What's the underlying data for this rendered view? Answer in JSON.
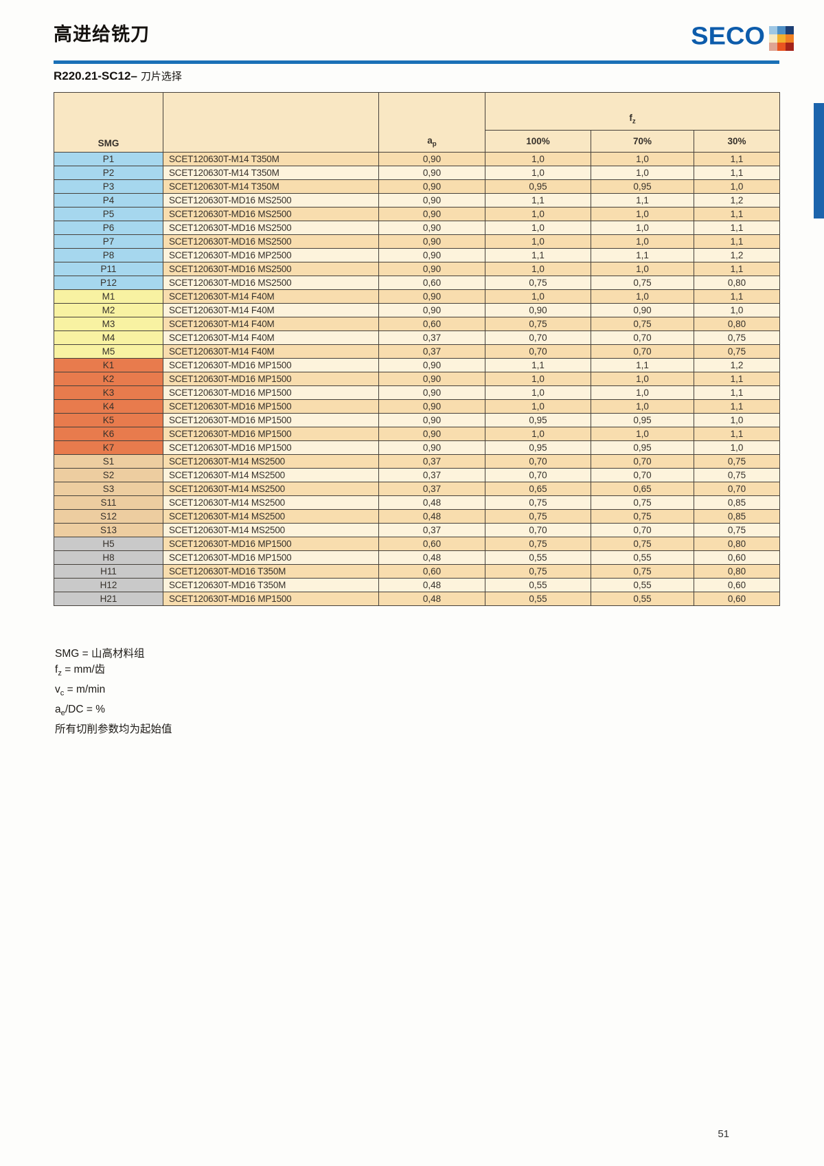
{
  "page": {
    "title": "高进给铣刀",
    "subtitle_code": "R220.21-SC12–",
    "subtitle_text": "刀片选择",
    "page_number": "51"
  },
  "logo": {
    "text": "SECO",
    "cube_colors": [
      [
        "#9ec7e4",
        "#4e8fc4",
        "#1c3e74"
      ],
      [
        "#f6e9c4",
        "#f2b02c",
        "#f08123"
      ],
      [
        "#dfa493",
        "#ea5420",
        "#a4231a"
      ]
    ]
  },
  "colors": {
    "accent_blue": "#1a70b6",
    "logo_blue": "#0d5cab",
    "side_tab": "#1c64ac",
    "header_bg": "#f9e7c3",
    "row_odd": "#f8ddae",
    "row_even": "#fdf3dc",
    "border": "#45403a",
    "group_P": "#a6d7ee",
    "group_M": "#f8f2a2",
    "group_K": "#e87b4d",
    "group_S": "#edcda0",
    "group_H": "#c9c9c9"
  },
  "table": {
    "headers": {
      "smg": "SMG",
      "ap_base": "a",
      "ap_sub": "p",
      "fz_base": "f",
      "fz_sub": "z",
      "percents": [
        "100%",
        "70%",
        "30%"
      ]
    },
    "rows": [
      {
        "smg": "P1",
        "group": "P",
        "insert": "SCET120630T-M14 T350M",
        "ap": "0,90",
        "fz100": "1,0",
        "fz70": "1,0",
        "fz30": "1,1"
      },
      {
        "smg": "P2",
        "group": "P",
        "insert": "SCET120630T-M14 T350M",
        "ap": "0,90",
        "fz100": "1,0",
        "fz70": "1,0",
        "fz30": "1,1"
      },
      {
        "smg": "P3",
        "group": "P",
        "insert": "SCET120630T-M14 T350M",
        "ap": "0,90",
        "fz100": "0,95",
        "fz70": "0,95",
        "fz30": "1,0"
      },
      {
        "smg": "P4",
        "group": "P",
        "insert": "SCET120630T-MD16 MS2500",
        "ap": "0,90",
        "fz100": "1,1",
        "fz70": "1,1",
        "fz30": "1,2"
      },
      {
        "smg": "P5",
        "group": "P",
        "insert": "SCET120630T-MD16 MS2500",
        "ap": "0,90",
        "fz100": "1,0",
        "fz70": "1,0",
        "fz30": "1,1"
      },
      {
        "smg": "P6",
        "group": "P",
        "insert": "SCET120630T-MD16 MS2500",
        "ap": "0,90",
        "fz100": "1,0",
        "fz70": "1,0",
        "fz30": "1,1"
      },
      {
        "smg": "P7",
        "group": "P",
        "insert": "SCET120630T-MD16 MS2500",
        "ap": "0,90",
        "fz100": "1,0",
        "fz70": "1,0",
        "fz30": "1,1"
      },
      {
        "smg": "P8",
        "group": "P",
        "insert": "SCET120630T-MD16 MP2500",
        "ap": "0,90",
        "fz100": "1,1",
        "fz70": "1,1",
        "fz30": "1,2"
      },
      {
        "smg": "P11",
        "group": "P",
        "insert": "SCET120630T-MD16 MS2500",
        "ap": "0,90",
        "fz100": "1,0",
        "fz70": "1,0",
        "fz30": "1,1"
      },
      {
        "smg": "P12",
        "group": "P",
        "insert": "SCET120630T-MD16 MS2500",
        "ap": "0,60",
        "fz100": "0,75",
        "fz70": "0,75",
        "fz30": "0,80"
      },
      {
        "smg": "M1",
        "group": "M",
        "insert": "SCET120630T-M14 F40M",
        "ap": "0,90",
        "fz100": "1,0",
        "fz70": "1,0",
        "fz30": "1,1"
      },
      {
        "smg": "M2",
        "group": "M",
        "insert": "SCET120630T-M14 F40M",
        "ap": "0,90",
        "fz100": "0,90",
        "fz70": "0,90",
        "fz30": "1,0"
      },
      {
        "smg": "M3",
        "group": "M",
        "insert": "SCET120630T-M14 F40M",
        "ap": "0,60",
        "fz100": "0,75",
        "fz70": "0,75",
        "fz30": "0,80"
      },
      {
        "smg": "M4",
        "group": "M",
        "insert": "SCET120630T-M14 F40M",
        "ap": "0,37",
        "fz100": "0,70",
        "fz70": "0,70",
        "fz30": "0,75"
      },
      {
        "smg": "M5",
        "group": "M",
        "insert": "SCET120630T-M14 F40M",
        "ap": "0,37",
        "fz100": "0,70",
        "fz70": "0,70",
        "fz30": "0,75"
      },
      {
        "smg": "K1",
        "group": "K",
        "insert": "SCET120630T-MD16 MP1500",
        "ap": "0,90",
        "fz100": "1,1",
        "fz70": "1,1",
        "fz30": "1,2"
      },
      {
        "smg": "K2",
        "group": "K",
        "insert": "SCET120630T-MD16 MP1500",
        "ap": "0,90",
        "fz100": "1,0",
        "fz70": "1,0",
        "fz30": "1,1"
      },
      {
        "smg": "K3",
        "group": "K",
        "insert": "SCET120630T-MD16 MP1500",
        "ap": "0,90",
        "fz100": "1,0",
        "fz70": "1,0",
        "fz30": "1,1"
      },
      {
        "smg": "K4",
        "group": "K",
        "insert": "SCET120630T-MD16 MP1500",
        "ap": "0,90",
        "fz100": "1,0",
        "fz70": "1,0",
        "fz30": "1,1"
      },
      {
        "smg": "K5",
        "group": "K",
        "insert": "SCET120630T-MD16 MP1500",
        "ap": "0,90",
        "fz100": "0,95",
        "fz70": "0,95",
        "fz30": "1,0"
      },
      {
        "smg": "K6",
        "group": "K",
        "insert": "SCET120630T-MD16 MP1500",
        "ap": "0,90",
        "fz100": "1,0",
        "fz70": "1,0",
        "fz30": "1,1"
      },
      {
        "smg": "K7",
        "group": "K",
        "insert": "SCET120630T-MD16 MP1500",
        "ap": "0,90",
        "fz100": "0,95",
        "fz70": "0,95",
        "fz30": "1,0"
      },
      {
        "smg": "S1",
        "group": "S",
        "insert": "SCET120630T-M14 MS2500",
        "ap": "0,37",
        "fz100": "0,70",
        "fz70": "0,70",
        "fz30": "0,75"
      },
      {
        "smg": "S2",
        "group": "S",
        "insert": "SCET120630T-M14 MS2500",
        "ap": "0,37",
        "fz100": "0,70",
        "fz70": "0,70",
        "fz30": "0,75"
      },
      {
        "smg": "S3",
        "group": "S",
        "insert": "SCET120630T-M14 MS2500",
        "ap": "0,37",
        "fz100": "0,65",
        "fz70": "0,65",
        "fz30": "0,70"
      },
      {
        "smg": "S11",
        "group": "S",
        "insert": "SCET120630T-M14 MS2500",
        "ap": "0,48",
        "fz100": "0,75",
        "fz70": "0,75",
        "fz30": "0,85"
      },
      {
        "smg": "S12",
        "group": "S",
        "insert": "SCET120630T-M14 MS2500",
        "ap": "0,48",
        "fz100": "0,75",
        "fz70": "0,75",
        "fz30": "0,85"
      },
      {
        "smg": "S13",
        "group": "S",
        "insert": "SCET120630T-M14 MS2500",
        "ap": "0,37",
        "fz100": "0,70",
        "fz70": "0,70",
        "fz30": "0,75"
      },
      {
        "smg": "H5",
        "group": "H",
        "insert": "SCET120630T-MD16 MP1500",
        "ap": "0,60",
        "fz100": "0,75",
        "fz70": "0,75",
        "fz30": "0,80"
      },
      {
        "smg": "H8",
        "group": "H",
        "insert": "SCET120630T-MD16 MP1500",
        "ap": "0,48",
        "fz100": "0,55",
        "fz70": "0,55",
        "fz30": "0,60"
      },
      {
        "smg": "H11",
        "group": "H",
        "insert": "SCET120630T-MD16 T350M",
        "ap": "0,60",
        "fz100": "0,75",
        "fz70": "0,75",
        "fz30": "0,80"
      },
      {
        "smg": "H12",
        "group": "H",
        "insert": "SCET120630T-MD16 T350M",
        "ap": "0,48",
        "fz100": "0,55",
        "fz70": "0,55",
        "fz30": "0,60"
      },
      {
        "smg": "H21",
        "group": "H",
        "insert": "SCET120630T-MD16 MP1500",
        "ap": "0,48",
        "fz100": "0,55",
        "fz70": "0,55",
        "fz30": "0,60"
      }
    ]
  },
  "footnotes": [
    {
      "pre": "SMG = 山高材料组"
    },
    {
      "pre": "f",
      "sub": "z",
      "post": " = mm/齿"
    },
    {
      "pre": "v",
      "sub": "c",
      "post": " = m/min"
    },
    {
      "pre": "a",
      "sub": "e",
      "post": "/DC = %"
    },
    {
      "pre": "所有切削参数均为起始值"
    }
  ]
}
